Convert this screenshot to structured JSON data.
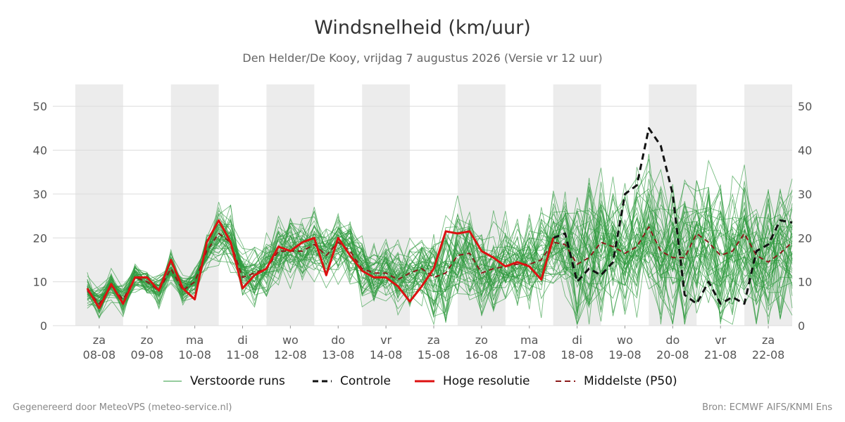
{
  "title": "Windsnelheid (km/uur)",
  "subtitle": "Den Helder/De Kooy, vrijdag  7 augustus 2026 (Versie vr 12 uur)",
  "footer": {
    "left": "Gegenereerd door MeteoVPS (meteo-service.nl)",
    "right": "Bron: ECMWF AIFS/KNMI Ens"
  },
  "legend": [
    {
      "label": "Verstoorde runs",
      "color": "#2e9a3e",
      "style": "thin-solid"
    },
    {
      "label": "Controle",
      "color": "#111111",
      "style": "dashed"
    },
    {
      "label": "Hoge resolutie",
      "color": "#dd1111",
      "style": "solid"
    },
    {
      "label": "Middelste (P50)",
      "color": "#8b1a1a",
      "style": "dashed"
    }
  ],
  "chart_data": {
    "type": "line",
    "title": "Windsnelheid (km/uur)",
    "subtitle": "Den Helder/De Kooy, vrijdag  7 augustus 2026 (Versie vr 12 uur)",
    "x_unit": "days since 08-08 00:00 (labels centered at noon)",
    "xlim": [
      -0.75,
      14.5
    ],
    "ylim": [
      0,
      55
    ],
    "y_ticks": [
      0,
      10,
      20,
      30,
      40,
      50
    ],
    "grid": true,
    "legend_position": "bottom",
    "x_ticks": [
      {
        "day": "za",
        "date": "08-08"
      },
      {
        "day": "zo",
        "date": "09-08"
      },
      {
        "day": "ma",
        "date": "10-08"
      },
      {
        "day": "di",
        "date": "11-08"
      },
      {
        "day": "wo",
        "date": "12-08"
      },
      {
        "day": "do",
        "date": "13-08"
      },
      {
        "day": "vr",
        "date": "14-08"
      },
      {
        "day": "za",
        "date": "15-08"
      },
      {
        "day": "zo",
        "date": "16-08"
      },
      {
        "day": "ma",
        "date": "17-08"
      },
      {
        "day": "di",
        "date": "18-08"
      },
      {
        "day": "wo",
        "date": "19-08"
      },
      {
        "day": "do",
        "date": "20-08"
      },
      {
        "day": "vr",
        "date": "21-08"
      },
      {
        "day": "za",
        "date": "22-08"
      }
    ],
    "shaded_days": [
      0,
      2,
      4,
      6,
      8,
      10,
      12,
      14
    ],
    "ensemble_members": 50,
    "series": [
      {
        "name": "Hoge resolutie",
        "color": "#dd1111",
        "x": [
          -0.25,
          0,
          0.25,
          0.5,
          0.75,
          1,
          1.25,
          1.5,
          1.75,
          2,
          2.25,
          2.5,
          2.75,
          3,
          3.25,
          3.5,
          3.75,
          4,
          4.25,
          4.5,
          4.75,
          5,
          5.25,
          5.5,
          5.75,
          6,
          6.25,
          6.5,
          6.75,
          7,
          7.25,
          7.5,
          7.75,
          8,
          8.25,
          8.5,
          8.75,
          9,
          9.25,
          9.5
        ],
        "y": [
          8.5,
          4,
          9.5,
          5,
          11,
          11,
          8,
          15,
          8.5,
          6,
          19,
          24,
          19,
          8.5,
          11.5,
          13,
          18,
          17,
          19,
          20,
          11.5,
          20,
          16,
          12.5,
          11,
          11,
          9,
          5.5,
          9,
          13,
          21.5,
          21,
          21.5,
          17,
          15.5,
          13.5,
          14.5,
          13.5,
          10.5,
          20
        ]
      },
      {
        "name": "Controle",
        "color": "#111111",
        "x": [
          9.5,
          9.75,
          10,
          10.25,
          10.5,
          10.75,
          11,
          11.25,
          11.5,
          11.75,
          12,
          12.25,
          12.5,
          12.75,
          13,
          13.25,
          13.5,
          13.75,
          14,
          14.25,
          14.5
        ],
        "y": [
          20,
          21,
          10,
          13,
          11.5,
          14.5,
          30,
          32,
          45,
          41,
          30,
          7,
          5,
          10,
          5,
          6.5,
          5,
          17,
          18.5,
          24,
          23.5
        ]
      },
      {
        "name": "Middelste (P50)",
        "color": "#8b1a1a",
        "x": [
          -0.25,
          0,
          0.25,
          0.5,
          0.75,
          1,
          1.25,
          1.5,
          1.75,
          2,
          2.25,
          2.5,
          2.75,
          3,
          3.25,
          3.5,
          3.75,
          4,
          4.25,
          4.5,
          4.75,
          5,
          5.25,
          5.5,
          5.75,
          6,
          6.25,
          6.5,
          6.75,
          7,
          7.25,
          7.5,
          7.75,
          8,
          8.25,
          8.5,
          8.75,
          9,
          9.25,
          9.5,
          9.75,
          10,
          10.25,
          10.5,
          10.75,
          11,
          11.25,
          11.5,
          11.75,
          12,
          12.25,
          12.5,
          12.75,
          13,
          13.25,
          13.5,
          13.75,
          14,
          14.25,
          14.5
        ],
        "y": [
          8,
          5,
          9,
          6,
          11,
          10,
          8,
          13,
          8,
          10,
          17,
          21,
          19,
          11,
          12,
          13,
          17,
          17,
          17,
          18.5,
          16,
          19,
          17,
          13,
          12,
          12,
          10.5,
          12,
          13,
          11,
          12,
          16,
          16.5,
          12,
          13,
          13.5,
          14,
          14,
          15,
          19,
          18.5,
          14,
          15.5,
          19,
          18,
          16.5,
          18,
          22.5,
          17,
          15.5,
          15.5,
          21,
          19,
          16,
          17,
          21,
          16,
          14.5,
          16.5,
          19
        ]
      }
    ]
  }
}
